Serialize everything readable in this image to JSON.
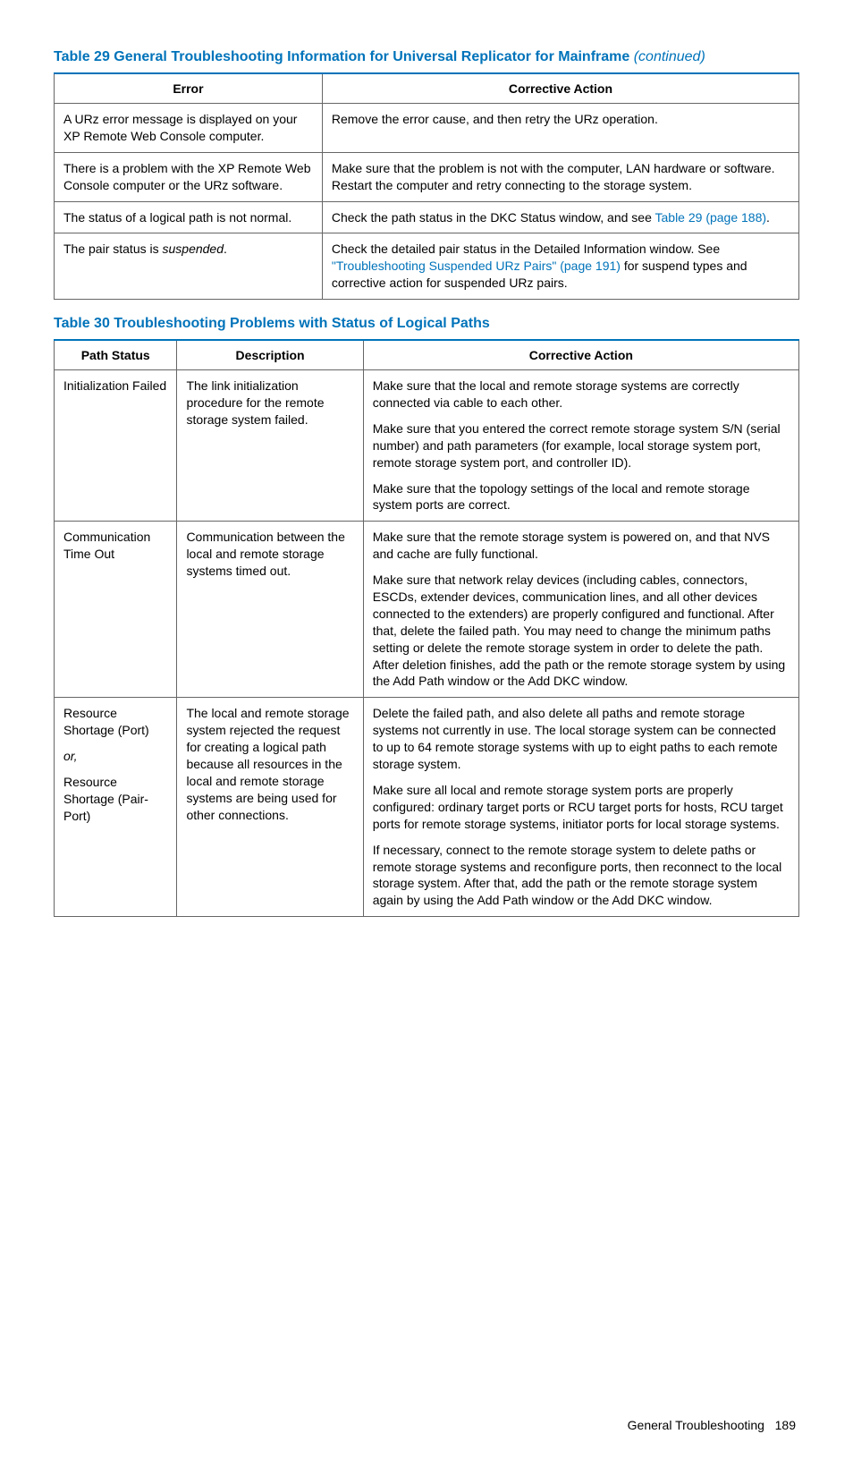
{
  "table29": {
    "title": "Table 29 General Troubleshooting Information for Universal Replicator for Mainframe",
    "continued": "(continued)",
    "headers": {
      "error": "Error",
      "action": "Corrective Action"
    },
    "rows": [
      {
        "error": "A URz error message is displayed on your XP Remote Web Console computer.",
        "action": "Remove the error cause, and then retry the URz operation."
      },
      {
        "error": "There is a problem with the XP Remote Web Console computer or the URz software.",
        "action": "Make sure that the problem is not with the computer, LAN hardware or software. Restart the computer and retry connecting to the storage system."
      },
      {
        "error": "The status of a logical path is not normal.",
        "action_pre": "Check the path status in the DKC Status window, and see ",
        "action_link": "Table 29 (page 188)",
        "action_post": "."
      },
      {
        "error_pre": "The pair status is ",
        "error_italic": "suspended",
        "error_post": ".",
        "action_pre": "Check the detailed pair status in the Detailed Information window. See ",
        "action_link": "\"Troubleshooting Suspended URz Pairs\" (page 191)",
        "action_post": " for suspend types and corrective action for suspended URz pairs."
      }
    ]
  },
  "table30": {
    "title": "Table 30 Troubleshooting Problems with Status of Logical Paths",
    "headers": {
      "status": "Path Status",
      "desc": "Description",
      "action": "Corrective Action"
    },
    "rows": [
      {
        "status": "Initialization Failed",
        "desc": "The link initialization procedure for the remote storage system failed.",
        "actions": [
          "Make sure that the local and remote storage systems are correctly connected via cable to each other.",
          "Make sure that you entered the correct remote storage system S/N (serial number) and path parameters (for example, local storage system port, remote storage system port, and controller ID).",
          "Make sure that the topology settings of the local and remote storage system ports are correct."
        ]
      },
      {
        "status": "Communication Time Out",
        "desc": "Communication between the local and remote storage systems timed out.",
        "actions": [
          "Make sure that the remote storage system is powered on, and that NVS and cache are fully functional.",
          "Make sure that network relay devices (including cables, connectors, ESCDs, extender devices, communication lines, and all other devices connected to the extenders) are properly configured and functional. After that, delete the failed path. You may need to change the minimum paths setting or delete the remote storage system in order to delete the path. After deletion finishes, add the path or the remote storage system by using the Add Path window or the Add DKC window."
        ]
      },
      {
        "status_lines": [
          "Resource Shortage (Port)",
          "or,",
          "Resource Shortage (Pair-Port)"
        ],
        "status_italic_index": 1,
        "desc": "The local and remote storage system rejected the request for creating a logical path because all resources in the local and remote storage systems are being used for other connections.",
        "actions": [
          "Delete the failed path, and also delete all paths and remote storage systems not currently in use. The local storage system can be connected to up to 64 remote storage systems with up to eight paths to each remote storage system.",
          "Make sure all local and remote storage system ports are properly configured: ordinary target ports or RCU target ports for hosts, RCU target ports for remote storage systems, initiator ports for local storage systems.",
          "If necessary, connect to the remote storage system to delete paths or remote storage systems and reconfigure ports, then reconnect to the local storage system. After that, add the path or the remote storage system again by using the Add Path window or the Add DKC window."
        ]
      }
    ]
  },
  "footer": {
    "section": "General Troubleshooting",
    "page": "189"
  }
}
